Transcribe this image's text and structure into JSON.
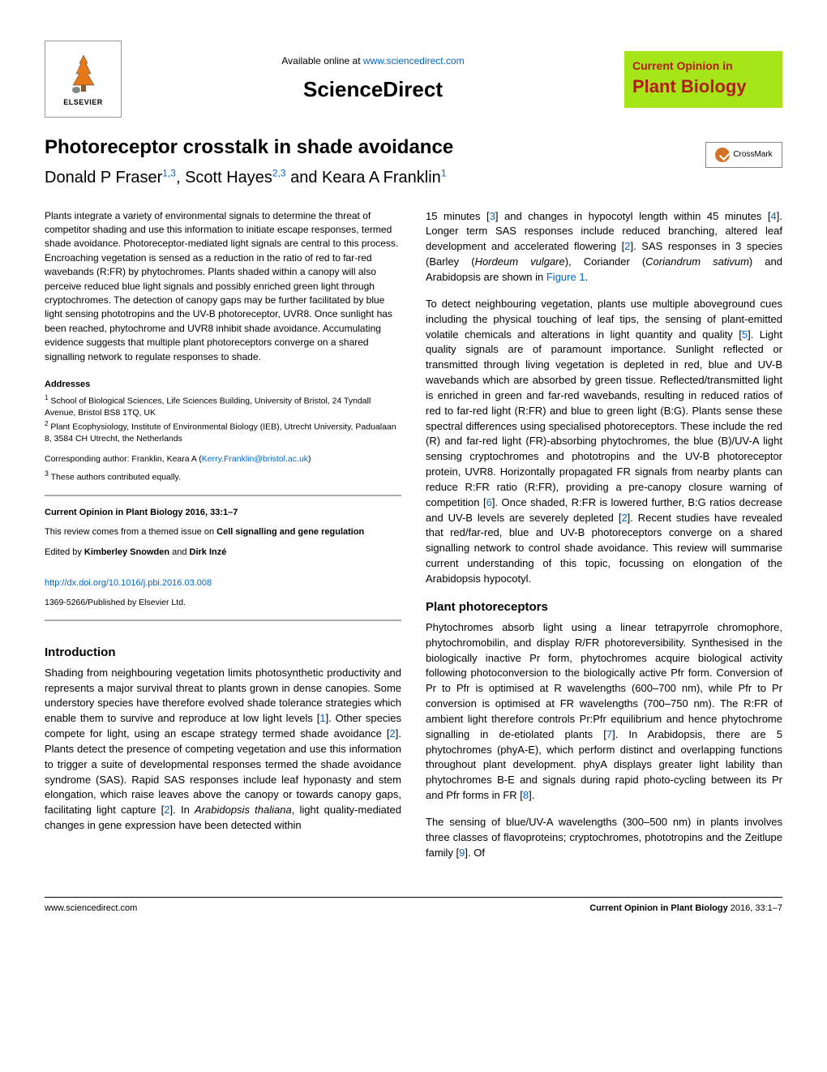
{
  "header": {
    "available_prefix": "Available online at ",
    "available_link": "www.sciencedirect.com",
    "sciencedirect": "ScienceDirect",
    "elsevier": "ELSEVIER",
    "journal_logo_line1": "Current Opinion in",
    "journal_logo_line2": "Plant Biology"
  },
  "article": {
    "title": "Photoreceptor crosstalk in shade avoidance",
    "authors_html": "Donald P Fraser<sup>1,3</sup>, Scott Hayes<sup>2,3</sup> and Keara A Franklin<sup>1</sup>",
    "crossmark": "CrossMark"
  },
  "abstract": "Plants integrate a variety of environmental signals to determine the threat of competitor shading and use this information to initiate escape responses, termed shade avoidance. Photoreceptor-mediated light signals are central to this process. Encroaching vegetation is sensed as a reduction in the ratio of red to far-red wavebands (R:FR) by phytochromes. Plants shaded within a canopy will also perceive reduced blue light signals and possibly enriched green light through cryptochromes. The detection of canopy gaps may be further facilitated by blue light sensing phototropins and the UV-B photoreceptor, UVR8. Once sunlight has been reached, phytochrome and UVR8 inhibit shade avoidance. Accumulating evidence suggests that multiple plant photoreceptors converge on a shared signalling network to regulate responses to shade.",
  "addresses": {
    "heading": "Addresses",
    "addr1": "<sup>1</sup> School of Biological Sciences, Life Sciences Building, University of Bristol, 24 Tyndall Avenue, Bristol BS8 1TQ, UK",
    "addr2": "<sup>2</sup> Plant Ecophysiology, Institute of Environmental Biology (IEB), Utrecht University, Padualaan 8, 3584 CH Utrecht, the Netherlands",
    "corresponding": "Corresponding author: Franklin, Keara A (",
    "corresponding_email": "Kerry.Franklin@bristol.ac.uk",
    "corresponding_close": ")",
    "equal": "<sup>3</sup> These authors contributed equally."
  },
  "infobox": {
    "journal_ref": "Current Opinion in Plant Biology 2016, 33:1–7",
    "themed_prefix": "This review comes from a themed issue on ",
    "themed_bold": "Cell signalling and gene regulation",
    "editors_prefix": "Edited by ",
    "editor1": "Kimberley Snowden",
    "editors_and": " and ",
    "editor2": "Dirk Inzé",
    "doi": "http://dx.doi.org/10.1016/j.pbi.2016.03.008",
    "issn": "1369-5266/Published by Elsevier Ltd."
  },
  "sections": {
    "intro_heading": "Introduction",
    "intro_p1": "Shading from neighbouring vegetation limits photosynthetic productivity and represents a major survival threat to plants grown in dense canopies. Some understory species have therefore evolved shade tolerance strategies which enable them to survive and reproduce at low light levels [<a class='ref'>1</a>]. Other species compete for light, using an escape strategy termed shade avoidance [<a class='ref'>2</a>]. Plants detect the presence of competing vegetation and use this information to trigger a suite of developmental responses termed the shade avoidance syndrome (SAS). Rapid SAS responses include leaf hyponasty and stem elongation, which raise leaves above the canopy or towards canopy gaps, facilitating light capture [<a class='ref'>2</a>]. In <em>Arabidopsis thaliana</em>, light quality-mediated changes in gene expression have been detected within",
    "col2_p1": "15 minutes [<a class='ref'>3</a>] and changes in hypocotyl length within 45 minutes [<a class='ref'>4</a>]. Longer term SAS responses include reduced branching, altered leaf development and accelerated flowering [<a class='ref'>2</a>]. SAS responses in 3 species (Barley (<em>Hordeum vulgare</em>), Coriander (<em>Coriandrum sativum</em>) and Arabidopsis are shown in <a class='figlink'>Figure 1</a>.",
    "col2_p2": "To detect neighbouring vegetation, plants use multiple aboveground cues including the physical touching of leaf tips, the sensing of plant-emitted volatile chemicals and alterations in light quantity and quality [<a class='ref'>5</a>]. Light quality signals are of paramount importance. Sunlight reflected or transmitted through living vegetation is depleted in red, blue and UV-B wavebands which are absorbed by green tissue. Reflected/transmitted light is enriched in green and far-red wavebands, resulting in reduced ratios of red to far-red light (R:FR) and blue to green light (B:G). Plants sense these spectral differences using specialised photoreceptors. These include the red (R) and far-red light (FR)-absorbing phytochromes, the blue (B)/UV-A light sensing cryptochromes and phototropins and the UV-B photoreceptor protein, UVR8. Horizontally propagated FR signals from nearby plants can reduce R:FR ratio (R:FR), providing a pre-canopy closure warning of competition [<a class='ref'>6</a>]. Once shaded, R:FR is lowered further, B:G ratios decrease and UV-B levels are severely depleted [<a class='ref'>2</a>]. Recent studies have revealed that red/far-red, blue and UV-B photoreceptors converge on a shared signalling network to control shade avoidance. This review will summarise current understanding of this topic, focussing on elongation of the Arabidopsis hypocotyl.",
    "photorec_heading": "Plant photoreceptors",
    "col2_p3": "Phytochromes absorb light using a linear tetrapyrrole chromophore, phytochromobilin, and display R/FR photoreversibility. Synthesised in the biologically inactive Pr form, phytochromes acquire biological activity following photoconversion to the biologically active Pfr form. Conversion of Pr to Pfr is optimised at R wavelengths (600–700 nm), while Pfr to Pr conversion is optimised at FR wavelengths (700–750 nm). The R:FR of ambient light therefore controls Pr:Pfr equilibrium and hence phytochrome signalling in de-etiolated plants [<a class='ref'>7</a>]. In Arabidopsis, there are 5 phytochromes (phyA-E), which perform distinct and overlapping functions throughout plant development. phyA displays greater light lability than phytochromes B-E and signals during rapid photo-cycling between its Pr and Pfr forms in FR [<a class='ref'>8</a>].",
    "col2_p4": "The sensing of blue/UV-A wavelengths (300–500 nm) in plants involves three classes of flavoproteins; cryptochromes, phototropins and the Zeitlupe family [<a class='ref'>9</a>]. Of"
  },
  "footer": {
    "left": "www.sciencedirect.com",
    "right_bold": "Current Opinion in Plant Biology",
    "right_rest": " 2016, 33:1–7"
  },
  "colors": {
    "link": "#0066cc",
    "journal_bg": "#a6e619",
    "journal_text": "#b31b1b",
    "crossmark_circle": "#d4722a"
  }
}
